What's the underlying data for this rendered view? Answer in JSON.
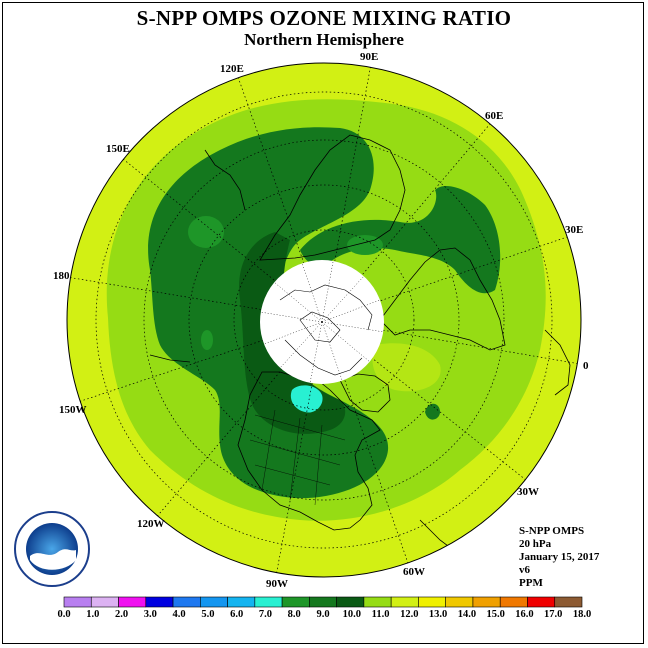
{
  "title": "S-NPP OMPS OZONE MIXING RATIO",
  "subtitle": "Northern Hemisphere",
  "longitude_labels": {
    "lon_90E": "90E",
    "lon_60E": "60E",
    "lon_30E": "30E",
    "lon_0": "0",
    "lon_30W": "30W",
    "lon_60W": "60W",
    "lon_90W": "90W",
    "lon_120W": "120W",
    "lon_150W": "150W",
    "lon_180": "180",
    "lon_150E": "150E",
    "lon_120E": "120E"
  },
  "info": {
    "instrument": "S-NPP OMPS",
    "level": "20 hPa",
    "date": "January 15, 2017",
    "version": "v6",
    "units": "PPM"
  },
  "logo_text": "NOAA",
  "colorbar": {
    "ticks": [
      "0.0",
      "1.0",
      "2.0",
      "3.0",
      "4.0",
      "5.0",
      "6.0",
      "7.0",
      "8.0",
      "9.0",
      "10.0",
      "11.0",
      "12.0",
      "13.0",
      "14.0",
      "15.0",
      "16.0",
      "17.0",
      "18.0"
    ],
    "colors": [
      "#b87ff0",
      "#dcb2f2",
      "#f010f0",
      "#0000e0",
      "#1e78f0",
      "#1496f0",
      "#14b4f0",
      "#28f0d2",
      "#1e9628",
      "#14781e",
      "#0a5a14",
      "#96dc14",
      "#d2f014",
      "#f0f000",
      "#f0c800",
      "#f0a000",
      "#f07800",
      "#f00000",
      "#8c5a32"
    ]
  },
  "chart_data": {
    "type": "heatmap",
    "title": "S-NPP OMPS OZONE MIXING RATIO",
    "subtitle": "Northern Hemisphere",
    "projection": "polar stereographic",
    "pressure_level": "20 hPa",
    "date": "January 15, 2017",
    "units": "PPM",
    "color_scale_min": 0.0,
    "color_scale_max": 18.0,
    "color_scale_step": 1.0,
    "regions": [
      {
        "area": "outer ring / tropics",
        "range": [
          11.0,
          12.0
        ]
      },
      {
        "area": "subtropical band",
        "range": [
          10.0,
          11.0
        ]
      },
      {
        "area": "North Pacific / North America",
        "range": [
          9.0,
          10.0
        ]
      },
      {
        "area": "Northern Europe / Scandinavia",
        "range": [
          9.0,
          10.0
        ]
      },
      {
        "area": "Hudson Bay area",
        "range": [
          7.0,
          8.0
        ]
      },
      {
        "area": "North Pole",
        "range": null
      }
    ]
  }
}
